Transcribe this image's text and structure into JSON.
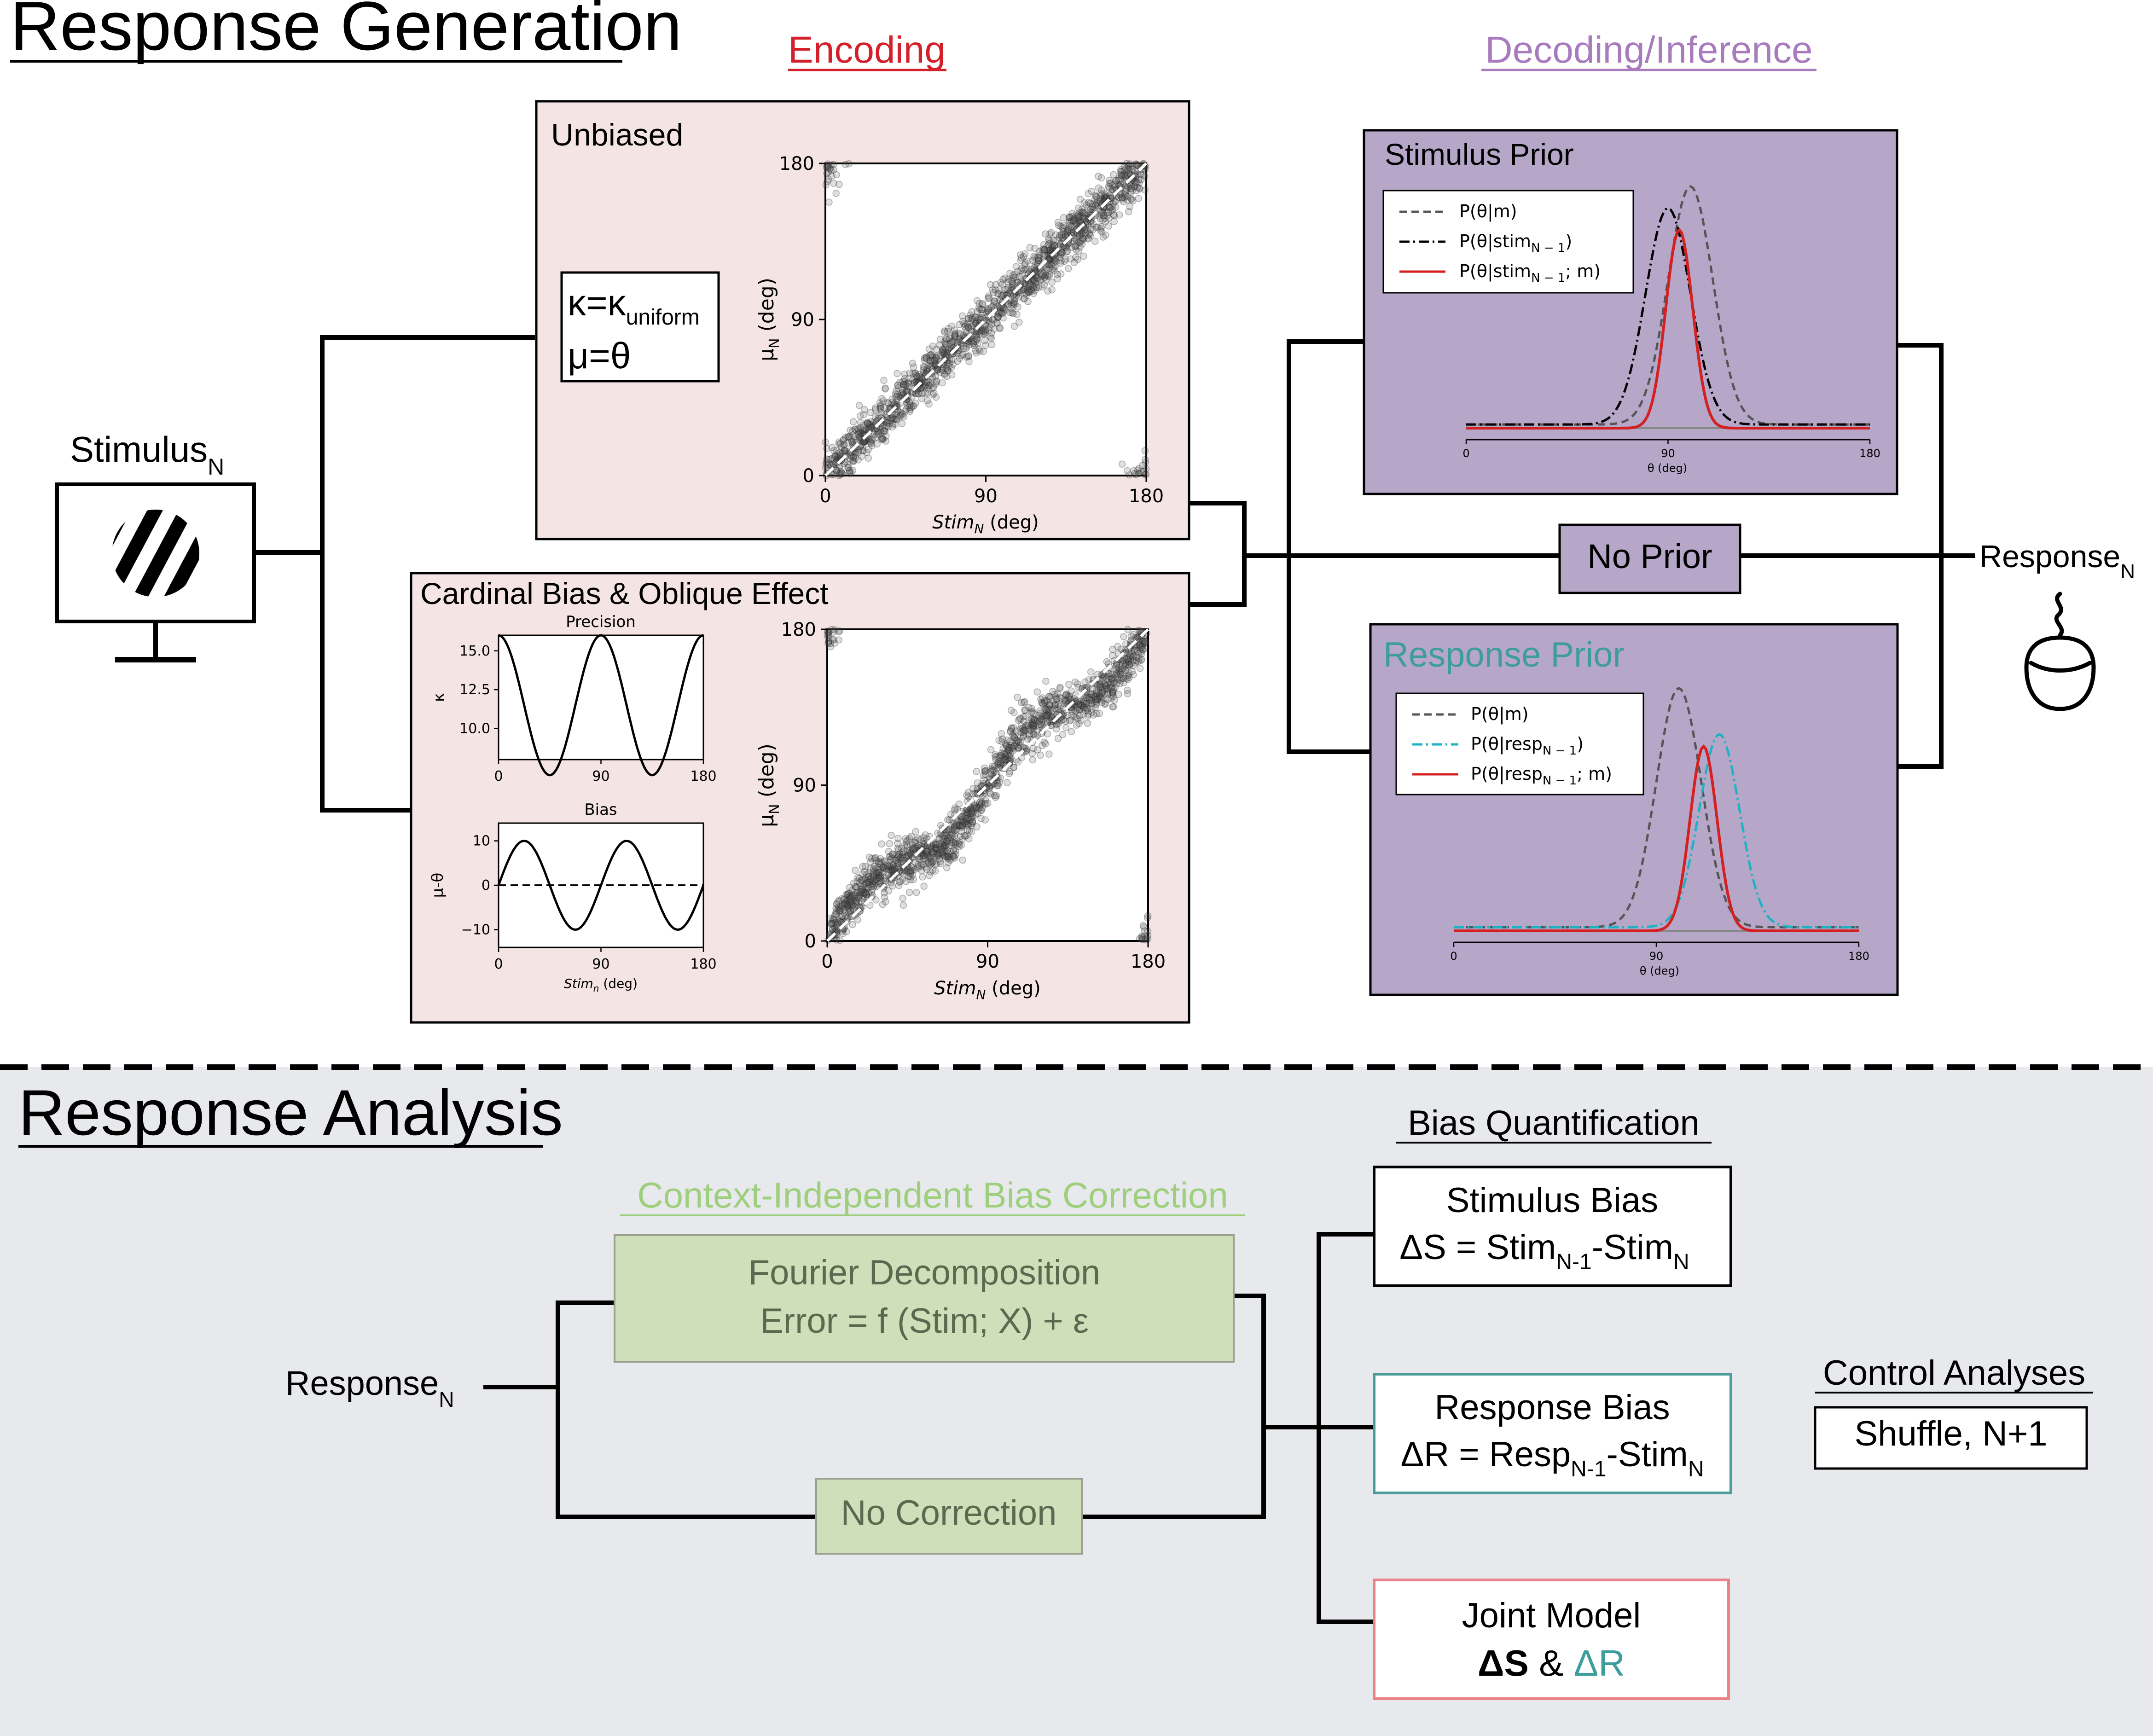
{
  "generation": {
    "title": "Response Generation",
    "encoding_label": "Encoding",
    "decoding_label": "Decoding/Inference",
    "stimulus": {
      "label": "Stimulus",
      "sub": "N"
    },
    "unbiased": {
      "title": "Unbiased",
      "kappa_main": "κ=κ",
      "kappa_sub": "uniform",
      "mu_eq": "μ=θ"
    },
    "cardinal": {
      "title": "Cardinal Bias & Oblique Effect",
      "precision_title": "Precision",
      "precision_ylabel": "κ",
      "bias_title": "Bias",
      "bias_ylabel": "μ-θ",
      "bias_xlabel_main": "Stim",
      "bias_xlabel_sub": "n",
      "bias_xlabel_unit": " (deg)"
    },
    "scatter": {
      "ylabel_main": "μ",
      "ylabel_sub": "N",
      "ylabel_unit": " (deg)",
      "xlabel_main": "Stim",
      "xlabel_sub": "N",
      "xlabel_unit": " (deg)"
    },
    "stimulus_prior": {
      "title": "Stimulus Prior",
      "legend": [
        {
          "main": "P(θ|m)",
          "style": "dashed"
        },
        {
          "main": "P(θ|stim",
          "sub": "N − 1",
          "tail": ")",
          "style": "dashdot"
        },
        {
          "main": "P(θ|stim",
          "sub": "N − 1",
          "tail": "; m)",
          "style": "solid-red"
        }
      ],
      "xlabel": "θ (deg)"
    },
    "no_prior": {
      "label": "No Prior"
    },
    "response_prior": {
      "title": "Response Prior",
      "legend": [
        {
          "main": "P(θ|m)",
          "style": "dashed"
        },
        {
          "main": "P(θ|resp",
          "sub": "N − 1",
          "tail": ")",
          "style": "dashdot-cyan"
        },
        {
          "main": "P(θ|resp",
          "sub": "N − 1",
          "tail": "; m)",
          "style": "solid-red"
        }
      ],
      "xlabel": "θ (deg)"
    },
    "response": {
      "label": "Response",
      "sub": "N"
    }
  },
  "analysis": {
    "title": "Response Analysis",
    "correction_label": "Context-Independent Bias Correction",
    "fourier": {
      "line1": "Fourier Decomposition",
      "line2": "Error = f (Stim; X) + ε"
    },
    "no_correction": "No Correction",
    "response": {
      "label": "Response",
      "sub": "N"
    },
    "bias_quant_label": "Bias Quantification",
    "stimulus_bias": {
      "title": "Stimulus Bias",
      "eq_a": "ΔS = Stim",
      "sub_a": "N-1",
      "eq_b": "-Stim",
      "sub_b": "N"
    },
    "response_bias": {
      "title": "Response Bias",
      "eq_a": "ΔR = Resp",
      "sub_a": "N-1",
      "eq_b": "-Stim",
      "sub_b": "N"
    },
    "joint": {
      "title": "Joint Model",
      "ds": "ΔS",
      "amp": " & ",
      "dr": "ΔR"
    },
    "control": {
      "title": "Control Analyses",
      "box": "Shuffle, N+1"
    }
  },
  "colors": {
    "encoding": "#d4202a",
    "decoding": "#a77bbd",
    "encoding_panel": "#f5e4e4",
    "decoding_panel": "#b6a6c8",
    "response_prior_title": "#3d9d9b",
    "correction_label": "#9dcf7d",
    "correction_box": "#cfdfb9",
    "correction_text": "#5a6a50",
    "analysis_bg": "#e8e9ec",
    "response_bias_border": "#4c9c9a",
    "joint_border": "#e98388",
    "dr_color": "#3d9d9b"
  },
  "chart_data": [
    {
      "name": "unbiased-scatter",
      "type": "scatter",
      "xlim": [
        0,
        180
      ],
      "ylim": [
        0,
        180
      ],
      "xticks": [
        0,
        90,
        180
      ],
      "yticks": [
        0,
        90,
        180
      ],
      "identity_line": true,
      "model": "mu = theta + noise"
    },
    {
      "name": "cardinal-scatter",
      "type": "scatter",
      "xlim": [
        0,
        180
      ],
      "ylim": [
        0,
        180
      ],
      "xticks": [
        0,
        90,
        180
      ],
      "yticks": [
        0,
        90,
        180
      ],
      "identity_line": true,
      "model": "mu = theta + 10*sin(4*pi*theta/180) + noise"
    },
    {
      "name": "precision",
      "type": "line",
      "xlim": [
        0,
        180
      ],
      "ylim": [
        8,
        16
      ],
      "xticks": [
        0,
        90,
        180
      ],
      "yticks": [
        10.0,
        12.5,
        15.0
      ],
      "ytick_labels": [
        "10.0",
        "12.5",
        "15.0"
      ],
      "series": [
        {
          "values_fn": "11.5 + 4.5*cos(4*pi*x/180)"
        }
      ]
    },
    {
      "name": "bias",
      "type": "line",
      "xlim": [
        0,
        180
      ],
      "ylim": [
        -14,
        14
      ],
      "xticks": [
        0,
        90,
        180
      ],
      "yticks": [
        -10,
        0,
        10
      ],
      "ytick_labels": [
        "−10",
        "0",
        "10"
      ],
      "series": [
        {
          "values_fn": "10*sin(4*pi*x/180)"
        }
      ],
      "zero_line": true
    },
    {
      "name": "stimulus-prior",
      "type": "line",
      "xlim": [
        0,
        180
      ],
      "xticks": [
        0,
        90,
        180
      ],
      "series": [
        {
          "label": "P(θ|m)",
          "mu": 100,
          "sigma": 10,
          "peak": 1.0,
          "base": 0.015
        },
        {
          "label": "P(θ|stim N−1)",
          "mu": 90,
          "sigma": 10,
          "peak": 0.91,
          "base": 0.015
        },
        {
          "label": "P(θ|stim N−1; m)",
          "mu": 95,
          "sigma": 6,
          "peak": 0.82,
          "base": 0.0
        }
      ]
    },
    {
      "name": "response-prior",
      "type": "line",
      "xlim": [
        0,
        180
      ],
      "xticks": [
        0,
        90,
        180
      ],
      "series": [
        {
          "label": "P(θ|m)",
          "mu": 100,
          "sigma": 10,
          "peak": 1.0,
          "base": 0.015
        },
        {
          "label": "P(θ|resp N−1)",
          "mu": 118,
          "sigma": 9,
          "peak": 0.81,
          "base": 0.015
        },
        {
          "label": "P(θ|resp N−1; m)",
          "mu": 111,
          "sigma": 6,
          "peak": 0.76,
          "base": 0.0
        }
      ]
    }
  ]
}
